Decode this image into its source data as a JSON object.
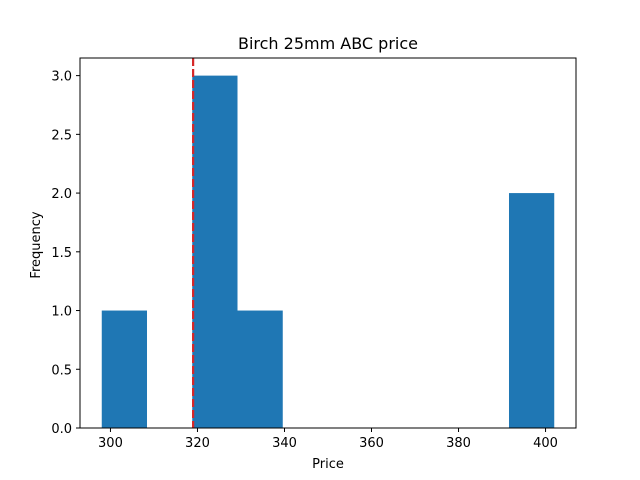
{
  "chart_data": {
    "type": "bar",
    "title": "Birch 25mm ABC price",
    "xlabel": "Price",
    "ylabel": "Frequency",
    "xlim": [
      293.0,
      407.0
    ],
    "ylim": [
      0.0,
      3.15
    ],
    "bins": [
      {
        "start": 298.0,
        "end": 308.4,
        "count": 1
      },
      {
        "start": 308.4,
        "end": 318.8,
        "count": 0
      },
      {
        "start": 318.8,
        "end": 329.2,
        "count": 3
      },
      {
        "start": 329.2,
        "end": 339.6,
        "count": 1
      },
      {
        "start": 339.6,
        "end": 350.0,
        "count": 0
      },
      {
        "start": 350.0,
        "end": 360.4,
        "count": 0
      },
      {
        "start": 360.4,
        "end": 370.8,
        "count": 0
      },
      {
        "start": 370.8,
        "end": 381.2,
        "count": 0
      },
      {
        "start": 381.2,
        "end": 391.6,
        "count": 0
      },
      {
        "start": 391.6,
        "end": 402.0,
        "count": 2
      }
    ],
    "reference_line": {
      "x": 319.0,
      "color": "#d62728",
      "style": "dashed"
    },
    "bar_color": "#1f77b4",
    "x_ticks": [
      {
        "value": 300,
        "label": "300"
      },
      {
        "value": 320,
        "label": "320"
      },
      {
        "value": 340,
        "label": "340"
      },
      {
        "value": 360,
        "label": "360"
      },
      {
        "value": 380,
        "label": "380"
      },
      {
        "value": 400,
        "label": "400"
      }
    ],
    "y_ticks": [
      {
        "value": 0.0,
        "label": "0.0"
      },
      {
        "value": 0.5,
        "label": "0.5"
      },
      {
        "value": 1.0,
        "label": "1.0"
      },
      {
        "value": 1.5,
        "label": "1.5"
      },
      {
        "value": 2.0,
        "label": "2.0"
      },
      {
        "value": 2.5,
        "label": "2.5"
      },
      {
        "value": 3.0,
        "label": "3.0"
      }
    ],
    "grid": false,
    "legend": "none"
  }
}
